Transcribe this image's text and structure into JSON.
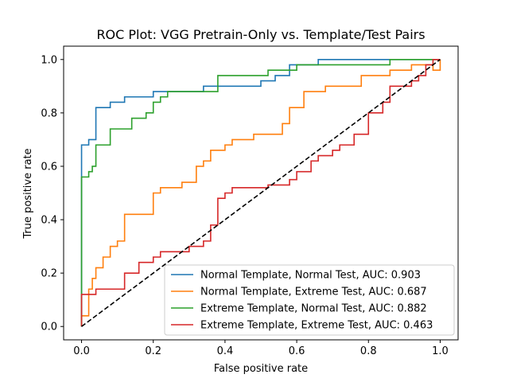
{
  "chart_data": {
    "type": "line",
    "title": "ROC Plot: VGG Pretrain-Only vs. Template/Test Pairs",
    "xlabel": "False positive rate",
    "ylabel": "True positive rate",
    "xlim": [
      -0.05,
      1.05
    ],
    "ylim": [
      -0.05,
      1.05
    ],
    "xticks": [
      "0.0",
      "0.2",
      "0.4",
      "0.6",
      "0.8",
      "1.0"
    ],
    "yticks": [
      "0.0",
      "0.2",
      "0.4",
      "0.6",
      "0.8",
      "1.0"
    ],
    "grid": false,
    "legend_position": "lower-right",
    "series": [
      {
        "name": "Normal Template, Normal Test, AUC: 0.903",
        "color": "#1f77b4",
        "style": "step",
        "points": [
          [
            0,
            0
          ],
          [
            0,
            0.68
          ],
          [
            0.02,
            0.68
          ],
          [
            0.02,
            0.7
          ],
          [
            0.04,
            0.7
          ],
          [
            0.04,
            0.82
          ],
          [
            0.08,
            0.82
          ],
          [
            0.08,
            0.84
          ],
          [
            0.12,
            0.84
          ],
          [
            0.12,
            0.86
          ],
          [
            0.2,
            0.86
          ],
          [
            0.2,
            0.88
          ],
          [
            0.34,
            0.88
          ],
          [
            0.34,
            0.9
          ],
          [
            0.5,
            0.9
          ],
          [
            0.5,
            0.92
          ],
          [
            0.54,
            0.92
          ],
          [
            0.54,
            0.94
          ],
          [
            0.58,
            0.94
          ],
          [
            0.58,
            0.98
          ],
          [
            0.66,
            0.98
          ],
          [
            0.66,
            1.0
          ],
          [
            1.0,
            1.0
          ]
        ]
      },
      {
        "name": "Normal Template, Extreme Test, AUC: 0.687",
        "color": "#ff7f0e",
        "style": "step",
        "points": [
          [
            0,
            0
          ],
          [
            0,
            0.04
          ],
          [
            0.02,
            0.04
          ],
          [
            0.02,
            0.14
          ],
          [
            0.03,
            0.14
          ],
          [
            0.03,
            0.18
          ],
          [
            0.04,
            0.18
          ],
          [
            0.04,
            0.22
          ],
          [
            0.06,
            0.22
          ],
          [
            0.06,
            0.26
          ],
          [
            0.08,
            0.26
          ],
          [
            0.08,
            0.3
          ],
          [
            0.1,
            0.3
          ],
          [
            0.1,
            0.32
          ],
          [
            0.12,
            0.32
          ],
          [
            0.12,
            0.42
          ],
          [
            0.2,
            0.42
          ],
          [
            0.2,
            0.5
          ],
          [
            0.22,
            0.5
          ],
          [
            0.22,
            0.52
          ],
          [
            0.28,
            0.52
          ],
          [
            0.28,
            0.54
          ],
          [
            0.32,
            0.54
          ],
          [
            0.32,
            0.6
          ],
          [
            0.34,
            0.6
          ],
          [
            0.34,
            0.62
          ],
          [
            0.36,
            0.62
          ],
          [
            0.36,
            0.66
          ],
          [
            0.4,
            0.66
          ],
          [
            0.4,
            0.68
          ],
          [
            0.42,
            0.68
          ],
          [
            0.42,
            0.7
          ],
          [
            0.48,
            0.7
          ],
          [
            0.48,
            0.72
          ],
          [
            0.56,
            0.72
          ],
          [
            0.56,
            0.76
          ],
          [
            0.58,
            0.76
          ],
          [
            0.58,
            0.82
          ],
          [
            0.62,
            0.82
          ],
          [
            0.62,
            0.88
          ],
          [
            0.68,
            0.88
          ],
          [
            0.68,
            0.9
          ],
          [
            0.78,
            0.9
          ],
          [
            0.78,
            0.94
          ],
          [
            0.86,
            0.94
          ],
          [
            0.86,
            0.96
          ],
          [
            0.92,
            0.96
          ],
          [
            0.92,
            0.98
          ],
          [
            0.98,
            0.98
          ],
          [
            0.98,
            0.96
          ],
          [
            1.0,
            0.96
          ],
          [
            1.0,
            1.0
          ]
        ]
      },
      {
        "name": "Extreme Template, Normal Test, AUC: 0.882",
        "color": "#2ca02c",
        "style": "step",
        "points": [
          [
            0,
            0
          ],
          [
            0,
            0.56
          ],
          [
            0.02,
            0.56
          ],
          [
            0.02,
            0.58
          ],
          [
            0.03,
            0.58
          ],
          [
            0.03,
            0.6
          ],
          [
            0.04,
            0.6
          ],
          [
            0.04,
            0.68
          ],
          [
            0.08,
            0.68
          ],
          [
            0.08,
            0.74
          ],
          [
            0.14,
            0.74
          ],
          [
            0.14,
            0.78
          ],
          [
            0.18,
            0.78
          ],
          [
            0.18,
            0.8
          ],
          [
            0.2,
            0.8
          ],
          [
            0.2,
            0.84
          ],
          [
            0.22,
            0.84
          ],
          [
            0.22,
            0.86
          ],
          [
            0.24,
            0.86
          ],
          [
            0.24,
            0.88
          ],
          [
            0.38,
            0.88
          ],
          [
            0.38,
            0.94
          ],
          [
            0.52,
            0.94
          ],
          [
            0.52,
            0.96
          ],
          [
            0.6,
            0.96
          ],
          [
            0.6,
            0.98
          ],
          [
            0.86,
            0.98
          ],
          [
            0.86,
            1.0
          ],
          [
            1.0,
            1.0
          ]
        ]
      },
      {
        "name": "Extreme Template, Extreme Test, AUC: 0.463",
        "color": "#d62728",
        "style": "step",
        "points": [
          [
            0,
            0
          ],
          [
            0,
            0.12
          ],
          [
            0.04,
            0.12
          ],
          [
            0.04,
            0.14
          ],
          [
            0.12,
            0.14
          ],
          [
            0.12,
            0.2
          ],
          [
            0.16,
            0.2
          ],
          [
            0.16,
            0.24
          ],
          [
            0.2,
            0.24
          ],
          [
            0.2,
            0.26
          ],
          [
            0.22,
            0.26
          ],
          [
            0.22,
            0.28
          ],
          [
            0.3,
            0.28
          ],
          [
            0.3,
            0.3
          ],
          [
            0.34,
            0.3
          ],
          [
            0.34,
            0.32
          ],
          [
            0.36,
            0.32
          ],
          [
            0.36,
            0.38
          ],
          [
            0.38,
            0.38
          ],
          [
            0.38,
            0.48
          ],
          [
            0.4,
            0.48
          ],
          [
            0.4,
            0.5
          ],
          [
            0.42,
            0.5
          ],
          [
            0.42,
            0.52
          ],
          [
            0.52,
            0.52
          ],
          [
            0.52,
            0.53
          ],
          [
            0.58,
            0.53
          ],
          [
            0.58,
            0.55
          ],
          [
            0.6,
            0.55
          ],
          [
            0.6,
            0.58
          ],
          [
            0.64,
            0.58
          ],
          [
            0.64,
            0.62
          ],
          [
            0.66,
            0.62
          ],
          [
            0.66,
            0.64
          ],
          [
            0.7,
            0.64
          ],
          [
            0.7,
            0.66
          ],
          [
            0.72,
            0.66
          ],
          [
            0.72,
            0.68
          ],
          [
            0.76,
            0.68
          ],
          [
            0.76,
            0.72
          ],
          [
            0.8,
            0.72
          ],
          [
            0.8,
            0.8
          ],
          [
            0.84,
            0.8
          ],
          [
            0.84,
            0.84
          ],
          [
            0.86,
            0.84
          ],
          [
            0.86,
            0.9
          ],
          [
            0.92,
            0.9
          ],
          [
            0.92,
            0.92
          ],
          [
            0.94,
            0.92
          ],
          [
            0.94,
            0.94
          ],
          [
            0.96,
            0.94
          ],
          [
            0.96,
            0.98
          ],
          [
            0.98,
            0.98
          ],
          [
            0.98,
            1.0
          ],
          [
            1.0,
            1.0
          ]
        ]
      },
      {
        "name": "",
        "color": "#000000",
        "style": "dashed",
        "points": [
          [
            0,
            0
          ],
          [
            1,
            1
          ]
        ]
      }
    ]
  }
}
